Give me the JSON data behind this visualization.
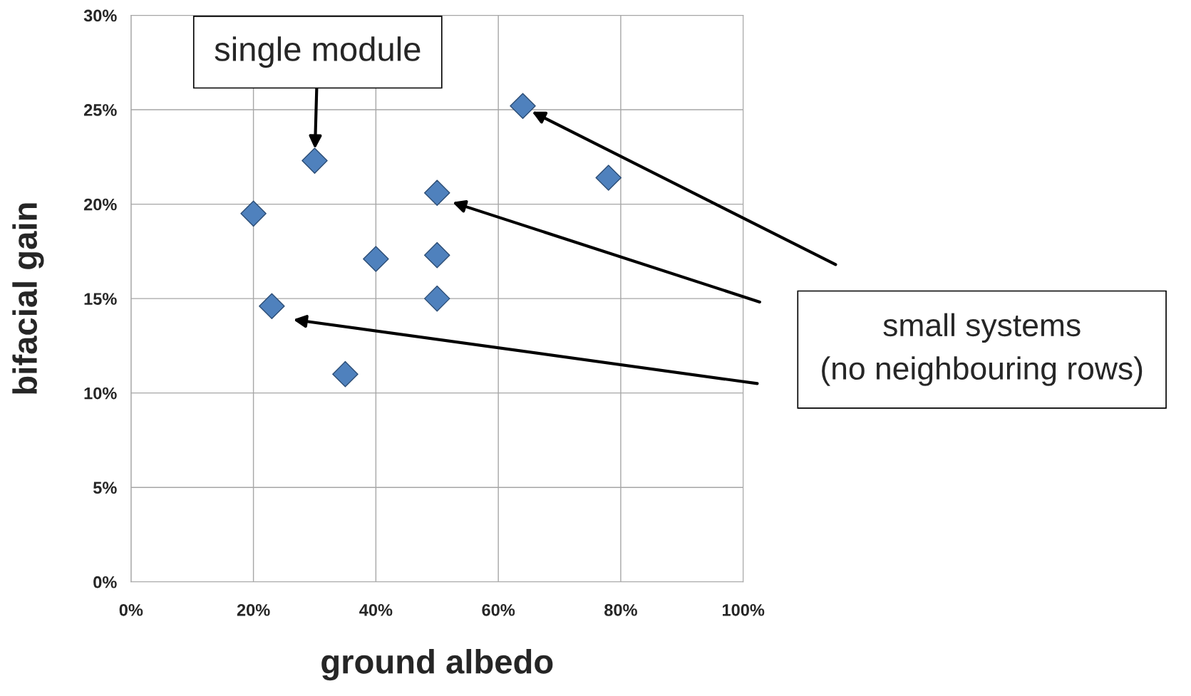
{
  "chart_data": {
    "type": "scatter",
    "xlabel": "ground albedo",
    "ylabel": "bifacial gain",
    "x": [
      20,
      30,
      23,
      40,
      35,
      50,
      50,
      50,
      64,
      78
    ],
    "values": [
      19.5,
      22.3,
      14.6,
      17.1,
      11.0,
      20.6,
      17.3,
      15.0,
      25.2,
      21.4
    ],
    "color": "#4f81bd",
    "marker": "diamond",
    "grid": true,
    "xlim": [
      0,
      100
    ],
    "ylim": [
      0,
      30
    ],
    "xticks": [
      {
        "value": 0,
        "label": "0%"
      },
      {
        "value": 20,
        "label": "20%"
      },
      {
        "value": 40,
        "label": "40%"
      },
      {
        "value": 60,
        "label": "60%"
      },
      {
        "value": 80,
        "label": "80%"
      },
      {
        "value": 100,
        "label": "100%"
      }
    ],
    "yticks": [
      {
        "value": 0,
        "label": "0%"
      },
      {
        "value": 5,
        "label": "5%"
      },
      {
        "value": 10,
        "label": "10%"
      },
      {
        "value": 15,
        "label": "15%"
      },
      {
        "value": 20,
        "label": "20%"
      },
      {
        "value": 25,
        "label": "25%"
      },
      {
        "value": 30,
        "label": "30%"
      }
    ],
    "annotations": [
      {
        "text": "single module",
        "x": 30,
        "y": 22.3
      },
      "small systems\n(no neighbouring rows)"
    ]
  }
}
